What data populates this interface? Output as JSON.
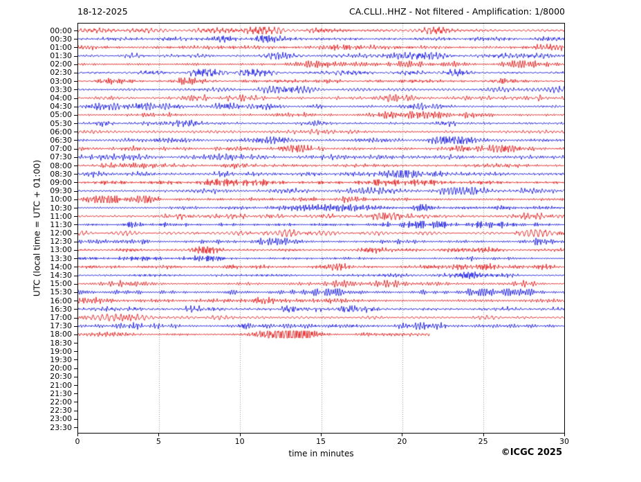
{
  "header": {
    "date": "18-12-2025",
    "title": "CA.CLLI..HHZ - Not filtered - Amplification: 1/8000"
  },
  "footer": {
    "copyright": "©ICGC 2025"
  },
  "chart_data": {
    "type": "line",
    "subtype": "helicorder-seismogram",
    "station": "CA.CLLI..HHZ",
    "filter": "Not filtered",
    "amplification": "1/8000",
    "date": "18-12-2025",
    "title": "CA.CLLI..HHZ - Not filtered - Amplification: 1/8000",
    "xlabel": "time in minutes",
    "ylabel": "UTC (local time = UTC + 01:00)",
    "xlim": [
      0,
      30
    ],
    "x_ticks": [
      0,
      5,
      10,
      15,
      20,
      25,
      30
    ],
    "grid": "vertical dotted lines every 5 minutes",
    "legend": "none",
    "colors": {
      "even_row": "#e00000",
      "odd_row": "#0000dd",
      "grid": "#909090",
      "axis": "#000000"
    },
    "rows": [
      {
        "label": "00:00",
        "color": "#e00000",
        "end_min": 30
      },
      {
        "label": "00:30",
        "color": "#0000dd",
        "end_min": 30
      },
      {
        "label": "01:00",
        "color": "#e00000",
        "end_min": 30
      },
      {
        "label": "01:30",
        "color": "#0000dd",
        "end_min": 30
      },
      {
        "label": "02:00",
        "color": "#e00000",
        "end_min": 30
      },
      {
        "label": "02:30",
        "color": "#0000dd",
        "end_min": 30
      },
      {
        "label": "03:00",
        "color": "#e00000",
        "end_min": 30
      },
      {
        "label": "03:30",
        "color": "#0000dd",
        "end_min": 30
      },
      {
        "label": "04:00",
        "color": "#e00000",
        "end_min": 30
      },
      {
        "label": "04:30",
        "color": "#0000dd",
        "end_min": 30
      },
      {
        "label": "05:00",
        "color": "#e00000",
        "end_min": 30
      },
      {
        "label": "05:30",
        "color": "#0000dd",
        "end_min": 30
      },
      {
        "label": "06:00",
        "color": "#e00000",
        "end_min": 30
      },
      {
        "label": "06:30",
        "color": "#0000dd",
        "end_min": 30
      },
      {
        "label": "07:00",
        "color": "#e00000",
        "end_min": 30
      },
      {
        "label": "07:30",
        "color": "#0000dd",
        "end_min": 30
      },
      {
        "label": "08:00",
        "color": "#e00000",
        "end_min": 30
      },
      {
        "label": "08:30",
        "color": "#0000dd",
        "end_min": 30
      },
      {
        "label": "09:00",
        "color": "#e00000",
        "end_min": 30
      },
      {
        "label": "09:30",
        "color": "#0000dd",
        "end_min": 30
      },
      {
        "label": "10:00",
        "color": "#e00000",
        "end_min": 30
      },
      {
        "label": "10:30",
        "color": "#0000dd",
        "end_min": 30
      },
      {
        "label": "11:00",
        "color": "#e00000",
        "end_min": 30
      },
      {
        "label": "11:30",
        "color": "#0000dd",
        "end_min": 30
      },
      {
        "label": "12:00",
        "color": "#e00000",
        "end_min": 30
      },
      {
        "label": "12:30",
        "color": "#0000dd",
        "end_min": 30
      },
      {
        "label": "13:00",
        "color": "#e00000",
        "end_min": 30
      },
      {
        "label": "13:30",
        "color": "#0000dd",
        "end_min": 30
      },
      {
        "label": "14:00",
        "color": "#e00000",
        "end_min": 30
      },
      {
        "label": "14:30",
        "color": "#0000dd",
        "end_min": 30
      },
      {
        "label": "15:00",
        "color": "#e00000",
        "end_min": 30
      },
      {
        "label": "15:30",
        "color": "#0000dd",
        "end_min": 30
      },
      {
        "label": "16:00",
        "color": "#e00000",
        "end_min": 30
      },
      {
        "label": "16:30",
        "color": "#0000dd",
        "end_min": 30
      },
      {
        "label": "17:00",
        "color": "#e00000",
        "end_min": 30
      },
      {
        "label": "17:30",
        "color": "#0000dd",
        "end_min": 30
      },
      {
        "label": "18:00",
        "color": "#e00000",
        "end_min": 21.7
      },
      {
        "label": "18:30",
        "color": "#0000dd",
        "end_min": 0
      },
      {
        "label": "19:00",
        "color": "#e00000",
        "end_min": 0
      },
      {
        "label": "19:30",
        "color": "#0000dd",
        "end_min": 0
      },
      {
        "label": "20:00",
        "color": "#e00000",
        "end_min": 0
      },
      {
        "label": "20:30",
        "color": "#0000dd",
        "end_min": 0
      },
      {
        "label": "21:00",
        "color": "#e00000",
        "end_min": 0
      },
      {
        "label": "21:30",
        "color": "#0000dd",
        "end_min": 0
      },
      {
        "label": "22:00",
        "color": "#e00000",
        "end_min": 0
      },
      {
        "label": "22:30",
        "color": "#0000dd",
        "end_min": 0
      },
      {
        "label": "23:00",
        "color": "#e00000",
        "end_min": 0
      },
      {
        "label": "23:30",
        "color": "#0000dd",
        "end_min": 0
      }
    ],
    "description": "Continuous seismic background noise with spindle-shaped amplitude bursts; recording stops at ~18:21 UTC, later rows empty."
  }
}
